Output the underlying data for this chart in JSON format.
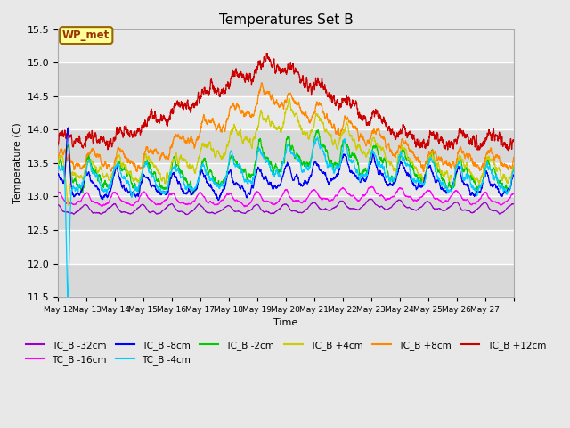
{
  "title": "Temperatures Set B",
  "xlabel": "Time",
  "ylabel": "Temperature (C)",
  "ylim": [
    11.5,
    15.5
  ],
  "background_color": "#e8e8e8",
  "series": [
    {
      "label": "TC_B -32cm",
      "color": "#9900cc"
    },
    {
      "label": "TC_B -16cm",
      "color": "#ff00ff"
    },
    {
      "label": "TC_B -8cm",
      "color": "#0000ff"
    },
    {
      "label": "TC_B -4cm",
      "color": "#00ccff"
    },
    {
      "label": "TC_B -2cm",
      "color": "#00cc00"
    },
    {
      "label": "TC_B +4cm",
      "color": "#cccc00"
    },
    {
      "label": "TC_B +8cm",
      "color": "#ff8800"
    },
    {
      "label": "TC_B +12cm",
      "color": "#cc0000"
    }
  ],
  "wp_met_box_color": "#ffff99",
  "wp_met_border_color": "#996600",
  "wp_met_text_color": "#993300",
  "x_tick_labels": [
    "May 12",
    "May 13",
    "May 14",
    "May 15",
    "May 16",
    "May 17",
    "May 18",
    "May 19",
    "May 20",
    "May 21",
    "May 22",
    "May 23",
    "May 24",
    "May 25",
    "May 26",
    "May 27"
  ],
  "figsize": [
    6.4,
    4.8
  ],
  "dpi": 100
}
